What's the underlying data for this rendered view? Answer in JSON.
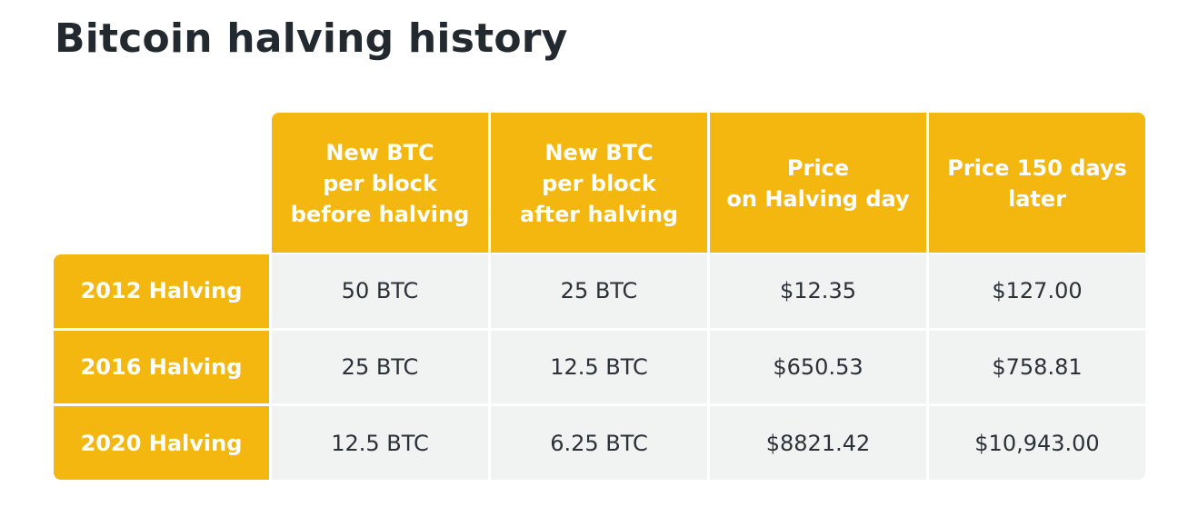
{
  "title": "Bitcoin halving history",
  "table": {
    "columns": [
      "New BTC\nper block\nbefore halving",
      "New BTC\nper block\nafter halving",
      "Price\non Halving day",
      "Price 150 days\nlater"
    ],
    "rows": [
      {
        "label": "2012 Halving",
        "cells": [
          "50 BTC",
          "25 BTC",
          "$12.35",
          "$127.00"
        ]
      },
      {
        "label": "2016 Halving",
        "cells": [
          "25 BTC",
          "12.5 BTC",
          "$650.53",
          "$758.81"
        ]
      },
      {
        "label": "2020 Halving",
        "cells": [
          "12.5 BTC",
          "6.25 BTC",
          "$8821.42",
          "$10,943.00"
        ]
      }
    ]
  },
  "colors": {
    "accent": "#f4b70f",
    "cell_background": "#f1f2f2",
    "title_text": "#22292f"
  }
}
